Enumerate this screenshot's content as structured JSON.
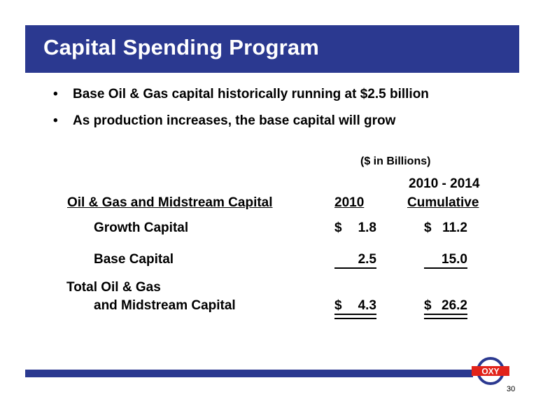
{
  "title": "Capital Spending Program",
  "bullets": [
    "Base Oil & Gas capital historically running at $2.5 billion",
    "As production increases, the base capital will grow"
  ],
  "bullet_char": "•",
  "table": {
    "units": "($ in Billions)",
    "header_label": "Oil & Gas and Midstream Capital",
    "col_2010": "2010",
    "col_cum_line1": "2010 - 2014",
    "col_cum_line2": "Cumulative",
    "rows": [
      {
        "label": "Growth Capital",
        "cur_2010": "$",
        "val_2010": "1.8",
        "cur_cum": "$",
        "val_cum": "11.2"
      },
      {
        "label": "Base Capital",
        "cur_2010": "",
        "val_2010": "2.5",
        "cur_cum": "",
        "val_cum": "15.0"
      }
    ],
    "total": {
      "label_line1": "Total Oil & Gas",
      "label_line2": "and Midstream Capital",
      "cur_2010": "$",
      "val_2010": "4.3",
      "cur_cum": "$",
      "val_cum": "26.2"
    }
  },
  "logo_text": "OXY",
  "page_number": "30",
  "colors": {
    "brand_blue": "#2b3990",
    "logo_red": "#e2231a"
  }
}
